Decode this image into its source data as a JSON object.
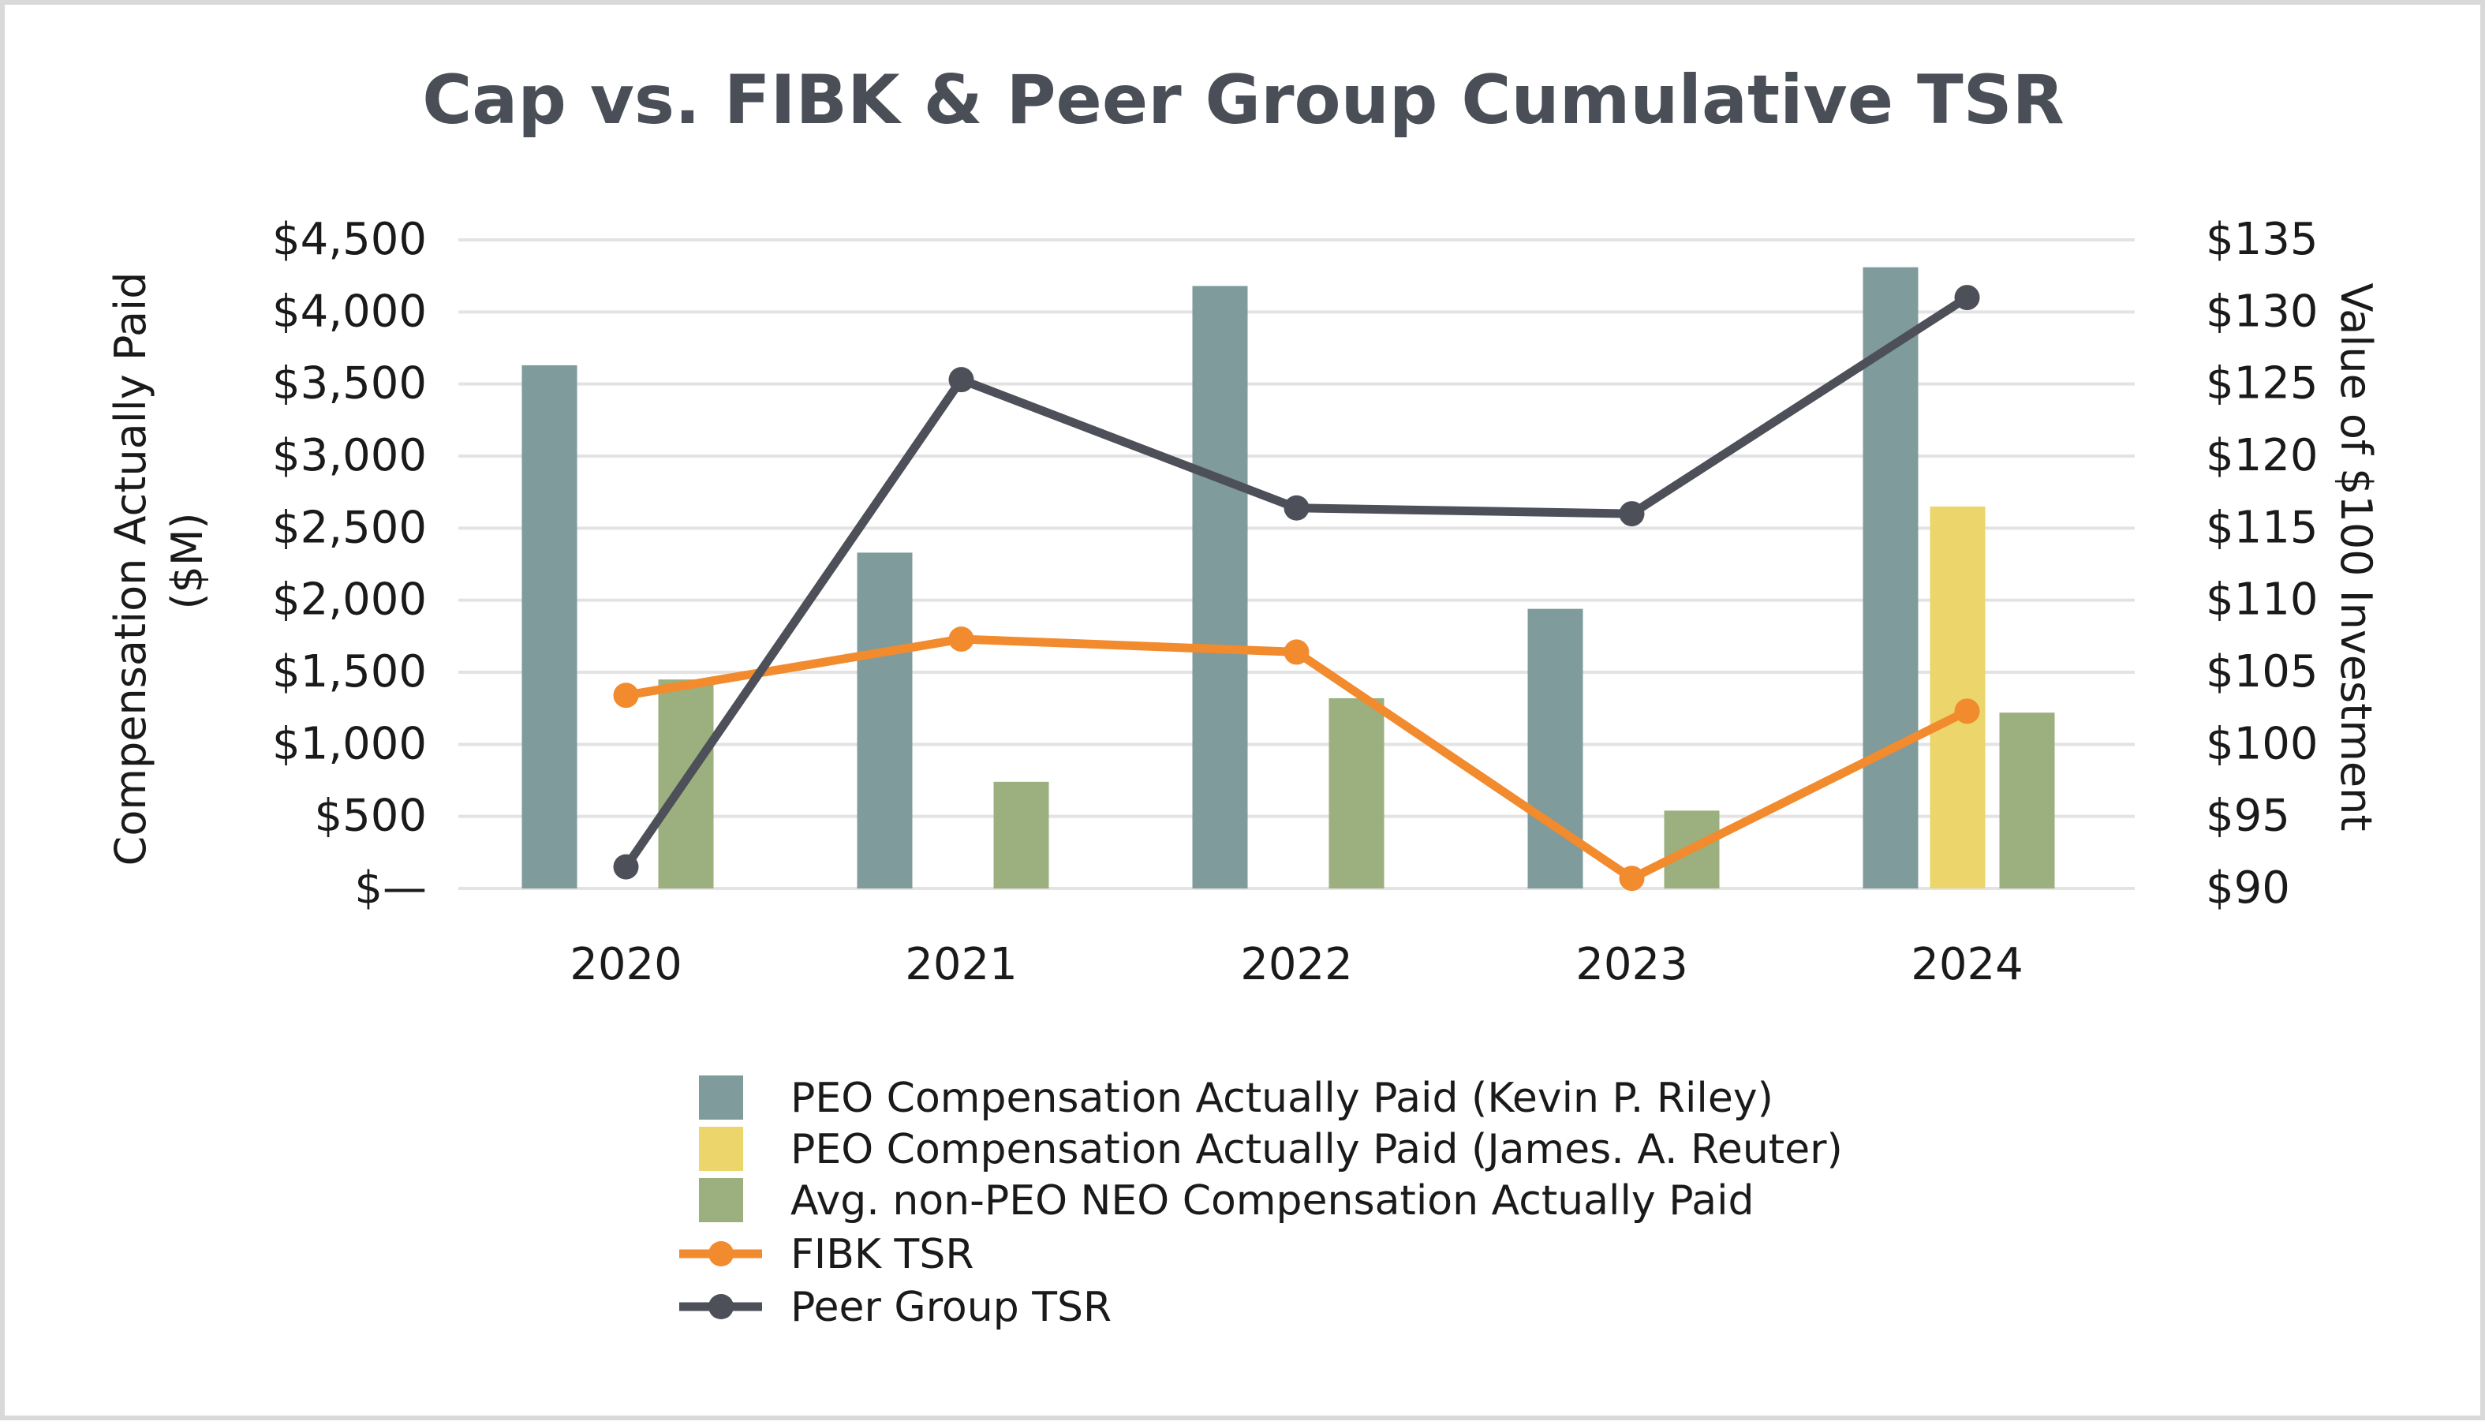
{
  "chart_data": {
    "type": "bar",
    "title": "Cap vs. FIBK & Peer Group Cumulative TSR",
    "categories": [
      "2020",
      "2021",
      "2022",
      "2023",
      "2024"
    ],
    "ylabel_left": [
      "Compensation Actually Paid",
      "($M)"
    ],
    "ylabel_right": "Value of $100 Investment",
    "left_axis": {
      "min": 0,
      "max": 4500,
      "ticks": [
        0,
        500,
        1000,
        1500,
        2000,
        2500,
        3000,
        3500,
        4000,
        4500
      ],
      "tick_labels": [
        "$—",
        "$500",
        "$1,000",
        "$1,500",
        "$2,000",
        "$2,500",
        "$3,000",
        "$3,500",
        "$4,000",
        "$4,500"
      ]
    },
    "right_axis": {
      "min": 90,
      "max": 135,
      "ticks": [
        90,
        95,
        100,
        105,
        110,
        115,
        120,
        125,
        130,
        135
      ],
      "tick_labels": [
        "$90",
        "$95",
        "$100",
        "$105",
        "$110",
        "$115",
        "$120",
        "$125",
        "$130",
        "$135"
      ]
    },
    "grid": true,
    "legend_position": "bottom",
    "bar_series": [
      {
        "name": "PEO Compensation Actually Paid (Kevin P. Riley)",
        "color": "#7f9b9c",
        "values": [
          3630,
          2330,
          4180,
          1940,
          4310
        ]
      },
      {
        "name": "PEO Compensation Actually Paid (James. A. Reuter)",
        "color": "#ecd56b",
        "values": [
          null,
          null,
          null,
          null,
          2650
        ]
      },
      {
        "name": "Avg. non-PEO NEO Compensation Actually Paid",
        "color": "#9caf7f",
        "values": [
          1450,
          740,
          1320,
          540,
          1220
        ]
      }
    ],
    "line_series": [
      {
        "name": "FIBK TSR",
        "color": "#f28a2e",
        "values": [
          103.4,
          107.3,
          106.4,
          90.7,
          102.3
        ]
      },
      {
        "name": "Peer Group TSR",
        "color": "#4d5058",
        "values": [
          91.5,
          125.3,
          116.4,
          116.0,
          131.0
        ]
      }
    ]
  }
}
